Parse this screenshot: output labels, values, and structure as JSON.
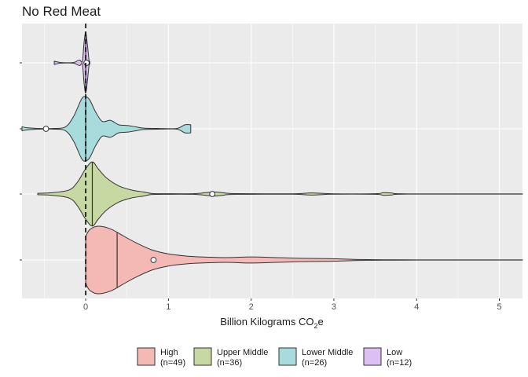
{
  "chart_data": {
    "type": "violin",
    "title": "No Red Meat",
    "xlabel": "Billion Kilograms CO",
    "xlabel_subscript": "2",
    "xlabel_suffix": "e",
    "ylabel": "",
    "xlim": [
      -0.77,
      5.28
    ],
    "x_ticks": [
      0,
      1,
      2,
      3,
      4,
      5
    ],
    "x_tick_labels": [
      "0",
      "1",
      "2",
      "3",
      "4",
      "5"
    ],
    "reference_line_x": 0,
    "grid": true,
    "legend_position": "bottom",
    "series": [
      {
        "name": "High",
        "n": 49,
        "n_label": "(n=49)",
        "color": "#f4b9b4",
        "min": 0.0,
        "max": 5.28,
        "median": 0.38,
        "mean": 0.82,
        "density": [
          [
            0.0,
            0.7
          ],
          [
            0.05,
            0.9
          ],
          [
            0.15,
            1.0
          ],
          [
            0.3,
            0.92
          ],
          [
            0.45,
            0.72
          ],
          [
            0.6,
            0.52
          ],
          [
            0.8,
            0.3
          ],
          [
            1.0,
            0.18
          ],
          [
            1.2,
            0.12
          ],
          [
            1.4,
            0.09
          ],
          [
            1.7,
            0.07
          ],
          [
            2.0,
            0.09
          ],
          [
            2.3,
            0.07
          ],
          [
            2.6,
            0.05
          ],
          [
            2.9,
            0.04
          ],
          [
            3.1,
            0.03
          ],
          [
            3.3,
            0.015
          ],
          [
            3.6,
            0.006
          ],
          [
            4.0,
            0.004
          ],
          [
            5.28,
            0.004
          ]
        ]
      },
      {
        "name": "Upper Middle",
        "n": 36,
        "n_label": "(n=36)",
        "color": "#c7d8a2",
        "min": -0.58,
        "max": 5.28,
        "median": 0.08,
        "mean": 1.53,
        "density": [
          [
            -0.58,
            0.02
          ],
          [
            -0.4,
            0.04
          ],
          [
            -0.2,
            0.12
          ],
          [
            -0.1,
            0.35
          ],
          [
            0.0,
            0.75
          ],
          [
            0.08,
            0.95
          ],
          [
            0.15,
            0.75
          ],
          [
            0.25,
            0.48
          ],
          [
            0.4,
            0.24
          ],
          [
            0.55,
            0.12
          ],
          [
            0.7,
            0.06
          ],
          [
            0.8,
            0.015
          ],
          [
            1.0,
            0.008
          ],
          [
            1.3,
            0.01
          ],
          [
            1.45,
            0.04
          ],
          [
            1.55,
            0.06
          ],
          [
            1.65,
            0.04
          ],
          [
            1.8,
            0.012
          ],
          [
            2.5,
            0.006
          ],
          [
            2.7,
            0.03
          ],
          [
            2.8,
            0.025
          ],
          [
            3.0,
            0.006
          ],
          [
            3.5,
            0.01
          ],
          [
            3.6,
            0.04
          ],
          [
            3.7,
            0.03
          ],
          [
            3.9,
            0.004
          ],
          [
            5.28,
            0.004
          ]
        ]
      },
      {
        "name": "Lower Middle",
        "n": 26,
        "n_label": "(n=26)",
        "color": "#a8dcdc",
        "min": -0.77,
        "max": 1.27,
        "median": 0.0,
        "mean": -0.48,
        "density": [
          [
            -0.77,
            0.06
          ],
          [
            -0.7,
            0.03
          ],
          [
            -0.55,
            0.01
          ],
          [
            -0.4,
            0.01
          ],
          [
            -0.25,
            0.05
          ],
          [
            -0.15,
            0.35
          ],
          [
            -0.05,
            0.88
          ],
          [
            0.0,
            0.95
          ],
          [
            0.05,
            0.85
          ],
          [
            0.12,
            0.5
          ],
          [
            0.2,
            0.22
          ],
          [
            0.3,
            0.25
          ],
          [
            0.4,
            0.12
          ],
          [
            0.5,
            0.1
          ],
          [
            0.6,
            0.06
          ],
          [
            0.7,
            0.02
          ],
          [
            0.9,
            0.01
          ],
          [
            1.1,
            0.01
          ],
          [
            1.2,
            0.12
          ],
          [
            1.27,
            0.12
          ]
        ]
      },
      {
        "name": "Low",
        "n": 12,
        "n_label": "(n=12)",
        "color": "#dcc0f4",
        "min": -0.38,
        "max": 0.05,
        "median": 0.0,
        "mean": 0.01,
        "density": [
          [
            -0.38,
            0.05
          ],
          [
            -0.3,
            0.01
          ],
          [
            -0.15,
            0.01
          ],
          [
            -0.1,
            0.06
          ],
          [
            -0.07,
            0.08
          ],
          [
            -0.04,
            0.05
          ],
          [
            -0.02,
            0.6
          ],
          [
            0.0,
            0.9
          ],
          [
            0.02,
            0.55
          ],
          [
            0.04,
            0.08
          ],
          [
            0.05,
            0.04
          ]
        ]
      }
    ]
  }
}
